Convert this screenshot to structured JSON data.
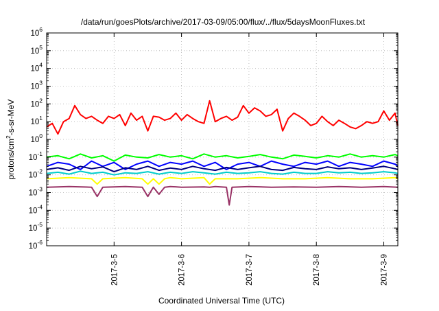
{
  "chart_data": {
    "type": "line",
    "title": "/data/run/goesPlots/archive/2017-03-09/05:00/flux/../flux/5daysMoonFluxes.txt",
    "xlabel": "Coordinated Universal Time (UTC)",
    "ylabel_parts": {
      "before": "protons/cm",
      "sup": "2",
      "after": "-s-sr-MeV"
    },
    "yscale": "log",
    "ylim": [
      1e-06,
      1000000.0
    ],
    "xlim": [
      "2017-03-04T00:00",
      "2017-03-09T05:00"
    ],
    "grid": true,
    "y_ticks": [
      {
        "value": 1e-06,
        "base": "10",
        "exp": "-6"
      },
      {
        "value": 1e-05,
        "base": "10",
        "exp": "-5"
      },
      {
        "value": 0.0001,
        "base": "10",
        "exp": "-4"
      },
      {
        "value": 0.001,
        "base": "10",
        "exp": "-3"
      },
      {
        "value": 0.01,
        "base": "10",
        "exp": "-2"
      },
      {
        "value": 0.1,
        "base": "10",
        "exp": "-1"
      },
      {
        "value": 1,
        "base": "10",
        "exp": "0"
      },
      {
        "value": 10,
        "base": "10",
        "exp": "1"
      },
      {
        "value": 100,
        "base": "10",
        "exp": "2"
      },
      {
        "value": 1000,
        "base": "10",
        "exp": "3"
      },
      {
        "value": 10000,
        "base": "10",
        "exp": "4"
      },
      {
        "value": 100000,
        "base": "10",
        "exp": "5"
      },
      {
        "value": 1000000,
        "base": "10",
        "exp": "6"
      }
    ],
    "x_ticks": [
      {
        "value": "2017-03-05T00:00",
        "label": "2017-3-5"
      },
      {
        "value": "2017-03-06T00:00",
        "label": "2017-3-6"
      },
      {
        "value": "2017-03-07T00:00",
        "label": "2017-3-7"
      },
      {
        "value": "2017-03-08T00:00",
        "label": "2017-3-8"
      },
      {
        "value": "2017-03-09T00:00",
        "label": "2017-3-9"
      }
    ],
    "series": [
      {
        "color": "#ff0000",
        "x": [
          "2017-03-04T00:00",
          "2017-03-04T02:00",
          "2017-03-04T04:00",
          "2017-03-04T06:00",
          "2017-03-04T08:00",
          "2017-03-04T10:00",
          "2017-03-04T12:00",
          "2017-03-04T14:00",
          "2017-03-04T16:00",
          "2017-03-04T18:00",
          "2017-03-04T20:00",
          "2017-03-04T22:00",
          "2017-03-05T00:00",
          "2017-03-05T02:00",
          "2017-03-05T04:00",
          "2017-03-05T06:00",
          "2017-03-05T08:00",
          "2017-03-05T10:00",
          "2017-03-05T12:00",
          "2017-03-05T14:00",
          "2017-03-05T16:00",
          "2017-03-05T18:00",
          "2017-03-05T20:00",
          "2017-03-05T22:00",
          "2017-03-06T00:00",
          "2017-03-06T02:00",
          "2017-03-06T04:00",
          "2017-03-06T06:00",
          "2017-03-06T08:00",
          "2017-03-06T10:00",
          "2017-03-06T12:00",
          "2017-03-06T14:00",
          "2017-03-06T16:00",
          "2017-03-06T18:00",
          "2017-03-06T20:00",
          "2017-03-06T22:00",
          "2017-03-07T00:00",
          "2017-03-07T02:00",
          "2017-03-07T04:00",
          "2017-03-07T06:00",
          "2017-03-07T08:00",
          "2017-03-07T10:00",
          "2017-03-07T12:00",
          "2017-03-07T14:00",
          "2017-03-07T16:00",
          "2017-03-07T18:00",
          "2017-03-07T20:00",
          "2017-03-07T22:00",
          "2017-03-08T00:00",
          "2017-03-08T02:00",
          "2017-03-08T04:00",
          "2017-03-08T06:00",
          "2017-03-08T08:00",
          "2017-03-08T10:00",
          "2017-03-08T12:00",
          "2017-03-08T14:00",
          "2017-03-08T16:00",
          "2017-03-08T18:00",
          "2017-03-08T20:00",
          "2017-03-08T22:00",
          "2017-03-09T00:00",
          "2017-03-09T02:00",
          "2017-03-09T04:00",
          "2017-03-09T05:00"
        ],
        "values": [
          5,
          8,
          2,
          10,
          15,
          80,
          25,
          15,
          20,
          12,
          8,
          20,
          15,
          25,
          6,
          30,
          12,
          20,
          3,
          20,
          18,
          12,
          15,
          30,
          12,
          25,
          15,
          10,
          8,
          150,
          10,
          15,
          20,
          12,
          18,
          80,
          30,
          60,
          40,
          20,
          25,
          50,
          3,
          15,
          30,
          20,
          12,
          6,
          8,
          20,
          10,
          6,
          12,
          8,
          5,
          4,
          6,
          10,
          8,
          10,
          40,
          12,
          30,
          6
        ]
      },
      {
        "color": "#00ff00",
        "x": [
          "2017-03-04T00:00",
          "2017-03-04T04:00",
          "2017-03-04T08:00",
          "2017-03-04T12:00",
          "2017-03-04T16:00",
          "2017-03-04T20:00",
          "2017-03-05T00:00",
          "2017-03-05T04:00",
          "2017-03-05T08:00",
          "2017-03-05T12:00",
          "2017-03-05T16:00",
          "2017-03-05T20:00",
          "2017-03-06T00:00",
          "2017-03-06T04:00",
          "2017-03-06T08:00",
          "2017-03-06T12:00",
          "2017-03-06T16:00",
          "2017-03-06T20:00",
          "2017-03-07T00:00",
          "2017-03-07T04:00",
          "2017-03-07T08:00",
          "2017-03-07T12:00",
          "2017-03-07T16:00",
          "2017-03-07T20:00",
          "2017-03-08T00:00",
          "2017-03-08T04:00",
          "2017-03-08T08:00",
          "2017-03-08T12:00",
          "2017-03-08T16:00",
          "2017-03-08T20:00",
          "2017-03-09T00:00",
          "2017-03-09T04:00",
          "2017-03-09T05:00"
        ],
        "values": [
          0.1,
          0.12,
          0.08,
          0.15,
          0.09,
          0.12,
          0.06,
          0.13,
          0.1,
          0.09,
          0.14,
          0.1,
          0.12,
          0.08,
          0.15,
          0.1,
          0.12,
          0.09,
          0.11,
          0.14,
          0.1,
          0.08,
          0.13,
          0.11,
          0.09,
          0.12,
          0.1,
          0.15,
          0.1,
          0.12,
          0.1,
          0.14,
          0.12
        ]
      },
      {
        "color": "#0000ff",
        "x": [
          "2017-03-04T00:00",
          "2017-03-04T04:00",
          "2017-03-04T08:00",
          "2017-03-04T12:00",
          "2017-03-04T16:00",
          "2017-03-04T20:00",
          "2017-03-05T00:00",
          "2017-03-05T04:00",
          "2017-03-05T08:00",
          "2017-03-05T12:00",
          "2017-03-05T16:00",
          "2017-03-05T20:00",
          "2017-03-06T00:00",
          "2017-03-06T04:00",
          "2017-03-06T08:00",
          "2017-03-06T12:00",
          "2017-03-06T16:00",
          "2017-03-06T20:00",
          "2017-03-07T00:00",
          "2017-03-07T04:00",
          "2017-03-07T08:00",
          "2017-03-07T12:00",
          "2017-03-07T16:00",
          "2017-03-07T20:00",
          "2017-03-08T00:00",
          "2017-03-08T04:00",
          "2017-03-08T08:00",
          "2017-03-08T12:00",
          "2017-03-08T16:00",
          "2017-03-08T20:00",
          "2017-03-09T00:00",
          "2017-03-09T04:00",
          "2017-03-09T05:00"
        ],
        "values": [
          0.03,
          0.05,
          0.04,
          0.02,
          0.06,
          0.03,
          0.05,
          0.02,
          0.04,
          0.06,
          0.03,
          0.05,
          0.04,
          0.06,
          0.03,
          0.05,
          0.02,
          0.04,
          0.05,
          0.03,
          0.06,
          0.04,
          0.03,
          0.05,
          0.04,
          0.06,
          0.03,
          0.05,
          0.04,
          0.03,
          0.06,
          0.04,
          0.03
        ]
      },
      {
        "color": "#000080",
        "x": [
          "2017-03-04T00:00",
          "2017-03-04T04:00",
          "2017-03-04T08:00",
          "2017-03-04T12:00",
          "2017-03-04T16:00",
          "2017-03-04T20:00",
          "2017-03-05T00:00",
          "2017-03-05T04:00",
          "2017-03-05T08:00",
          "2017-03-05T12:00",
          "2017-03-05T16:00",
          "2017-03-05T20:00",
          "2017-03-06T00:00",
          "2017-03-06T04:00",
          "2017-03-06T08:00",
          "2017-03-06T12:00",
          "2017-03-06T16:00",
          "2017-03-06T20:00",
          "2017-03-07T00:00",
          "2017-03-07T04:00",
          "2017-03-07T08:00",
          "2017-03-07T12:00",
          "2017-03-07T16:00",
          "2017-03-07T20:00",
          "2017-03-08T00:00",
          "2017-03-08T04:00",
          "2017-03-08T08:00",
          "2017-03-08T12:00",
          "2017-03-08T16:00",
          "2017-03-08T20:00",
          "2017-03-09T00:00",
          "2017-03-09T04:00",
          "2017-03-09T05:00"
        ],
        "values": [
          0.02,
          0.025,
          0.018,
          0.03,
          0.022,
          0.028,
          0.015,
          0.025,
          0.02,
          0.03,
          0.018,
          0.024,
          0.02,
          0.03,
          0.022,
          0.018,
          0.026,
          0.02,
          0.025,
          0.03,
          0.02,
          0.018,
          0.026,
          0.022,
          0.02,
          0.028,
          0.022,
          0.025,
          0.02,
          0.024,
          0.03,
          0.022,
          0.02
        ]
      },
      {
        "color": "#00cccc",
        "x": [
          "2017-03-04T00:00",
          "2017-03-04T04:00",
          "2017-03-04T08:00",
          "2017-03-04T12:00",
          "2017-03-04T16:00",
          "2017-03-04T20:00",
          "2017-03-05T00:00",
          "2017-03-05T04:00",
          "2017-03-05T08:00",
          "2017-03-05T12:00",
          "2017-03-05T16:00",
          "2017-03-05T20:00",
          "2017-03-06T00:00",
          "2017-03-06T04:00",
          "2017-03-06T08:00",
          "2017-03-06T12:00",
          "2017-03-06T16:00",
          "2017-03-06T20:00",
          "2017-03-07T00:00",
          "2017-03-07T04:00",
          "2017-03-07T08:00",
          "2017-03-07T12:00",
          "2017-03-07T16:00",
          "2017-03-07T20:00",
          "2017-03-08T00:00",
          "2017-03-08T04:00",
          "2017-03-08T08:00",
          "2017-03-08T12:00",
          "2017-03-08T16:00",
          "2017-03-08T20:00",
          "2017-03-09T00:00",
          "2017-03-09T04:00",
          "2017-03-09T05:00"
        ],
        "values": [
          0.012,
          0.014,
          0.011,
          0.016,
          0.012,
          0.014,
          0.01,
          0.013,
          0.012,
          0.015,
          0.011,
          0.014,
          0.012,
          0.015,
          0.013,
          0.011,
          0.014,
          0.012,
          0.013,
          0.015,
          0.012,
          0.011,
          0.014,
          0.012,
          0.012,
          0.015,
          0.013,
          0.014,
          0.012,
          0.013,
          0.015,
          0.013,
          0.012
        ]
      },
      {
        "color": "#ffff00",
        "x": [
          "2017-03-04T00:00",
          "2017-03-04T08:00",
          "2017-03-04T16:00",
          "2017-03-04T18:00",
          "2017-03-04T20:00",
          "2017-03-05T04:00",
          "2017-03-05T10:00",
          "2017-03-05T12:00",
          "2017-03-05T14:00",
          "2017-03-05T16:00",
          "2017-03-05T18:00",
          "2017-03-05T20:00",
          "2017-03-06T00:00",
          "2017-03-06T08:00",
          "2017-03-06T10:00",
          "2017-03-06T12:00",
          "2017-03-06T20:00",
          "2017-03-07T04:00",
          "2017-03-07T12:00",
          "2017-03-07T20:00",
          "2017-03-08T04:00",
          "2017-03-08T12:00",
          "2017-03-08T20:00",
          "2017-03-09T04:00",
          "2017-03-09T05:00"
        ],
        "values": [
          0.006,
          0.007,
          0.006,
          0.003,
          0.006,
          0.007,
          0.006,
          0.003,
          0.006,
          0.003,
          0.006,
          0.007,
          0.006,
          0.007,
          0.003,
          0.006,
          0.006,
          0.007,
          0.006,
          0.006,
          0.007,
          0.006,
          0.006,
          0.007,
          0.006
        ]
      },
      {
        "color": "#993366",
        "x": [
          "2017-03-04T00:00",
          "2017-03-04T08:00",
          "2017-03-04T16:00",
          "2017-03-04T18:00",
          "2017-03-04T20:00",
          "2017-03-05T04:00",
          "2017-03-05T10:00",
          "2017-03-05T12:00",
          "2017-03-05T14:00",
          "2017-03-05T16:00",
          "2017-03-05T18:00",
          "2017-03-05T20:00",
          "2017-03-06T00:00",
          "2017-03-06T08:00",
          "2017-03-06T10:00",
          "2017-03-06T12:00",
          "2017-03-06T16:00",
          "2017-03-06T17:00",
          "2017-03-06T18:00",
          "2017-03-07T00:00",
          "2017-03-07T08:00",
          "2017-03-07T16:00",
          "2017-03-08T00:00",
          "2017-03-08T08:00",
          "2017-03-08T16:00",
          "2017-03-09T00:00",
          "2017-03-09T05:00"
        ],
        "values": [
          0.002,
          0.0022,
          0.002,
          0.0006,
          0.002,
          0.0022,
          0.002,
          0.0006,
          0.002,
          0.0008,
          0.002,
          0.0022,
          0.002,
          0.0021,
          0.002,
          0.0022,
          0.002,
          0.0002,
          0.002,
          0.0022,
          0.002,
          0.0021,
          0.002,
          0.0022,
          0.002,
          0.0022,
          0.002
        ]
      }
    ]
  }
}
